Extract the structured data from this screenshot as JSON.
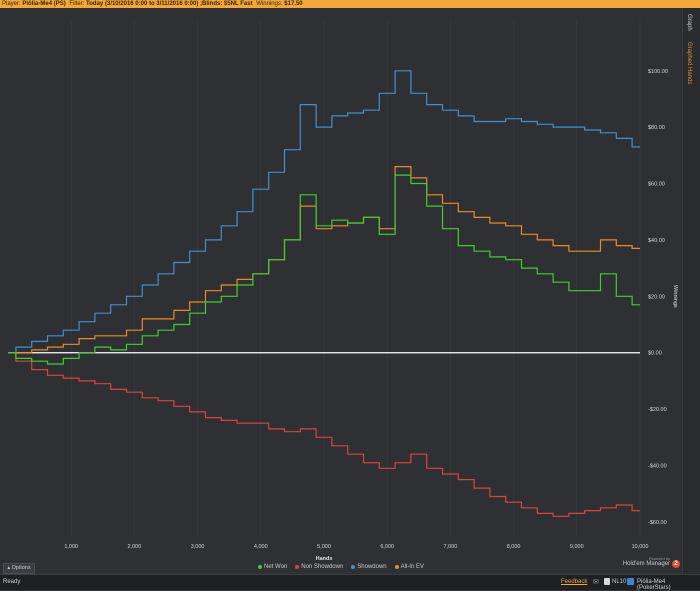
{
  "title_bar": {
    "player_label": "Player:",
    "player_name": "Piölia-Me4 (PS)",
    "filter_label": "Filter:",
    "filter_value": "Today (3/10/2016 0:00 to 3/11/2016 0:00) ;Blinds: $5NL Fast",
    "winnings_label": "Winnings:",
    "winnings_value": "$17.50"
  },
  "side_tabs": {
    "graph": "Graph",
    "graphed_hands": "Graphed Hands"
  },
  "options_label": "Options",
  "powered_by": {
    "small": "Powered by",
    "brand": "Hold'em Manager",
    "badge": "2"
  },
  "status_bar": {
    "ready": "Ready",
    "feedback": "Feedback",
    "stakes": "NL10",
    "player": "Piölia-Me4 (PokerStars)"
  },
  "colors": {
    "net_won": "#3ecf2e",
    "non_showdown": "#d9463a",
    "showdown": "#3f8fd2",
    "all_in_ev": "#ea8a26",
    "zero_line": "#ffffff",
    "grid": "#3a3d41",
    "accent": "#f2a73b"
  },
  "chart_data": {
    "type": "line",
    "xlabel": "Hands",
    "ylabel": "Winnings",
    "xlim": [
      0,
      10000
    ],
    "ylim": [
      -65,
      118
    ],
    "x_ticks": [
      1000,
      2000,
      3000,
      4000,
      5000,
      6000,
      7000,
      8000,
      9000,
      10000
    ],
    "x_tick_labels": [
      "1,000",
      "2,000",
      "3,000",
      "4,000",
      "5,000",
      "6,000",
      "7,000",
      "8,000",
      "9,000",
      "10,000"
    ],
    "y_ticks": [
      -60,
      -40,
      -20,
      0,
      20,
      40,
      60,
      80,
      100
    ],
    "y_tick_labels": [
      "-$60.00",
      "-$40.00",
      "-$20.00",
      "$0.00",
      "$20.00",
      "$40.00",
      "$60.00",
      "$80.00",
      "$100.00"
    ],
    "legend_position": "bottom-center",
    "grid": false,
    "x": [
      0,
      250,
      500,
      750,
      1000,
      1250,
      1500,
      1750,
      2000,
      2250,
      2500,
      2750,
      3000,
      3250,
      3500,
      3750,
      4000,
      4250,
      4500,
      4750,
      5000,
      5250,
      5500,
      5750,
      6000,
      6250,
      6500,
      6750,
      7000,
      7250,
      7500,
      7750,
      8000,
      8250,
      8500,
      8750,
      9000,
      9250,
      9500,
      9750,
      10000
    ],
    "series": [
      {
        "name": "Net Won",
        "values": [
          0,
          -2,
          -3,
          -4,
          -2,
          0,
          2,
          1,
          3,
          6,
          8,
          10,
          14,
          18,
          20,
          24,
          28,
          33,
          40,
          56,
          45,
          47,
          46,
          48,
          42,
          63,
          60,
          52,
          44,
          38,
          36,
          34,
          33,
          30,
          28,
          25,
          22,
          22,
          28,
          20,
          17
        ]
      },
      {
        "name": "Non Showdown",
        "values": [
          0,
          -3,
          -6,
          -8,
          -9,
          -10,
          -11,
          -13,
          -14,
          -16,
          -17,
          -19,
          -21,
          -23,
          -24,
          -25,
          -25,
          -27,
          -28,
          -27,
          -30,
          -33,
          -36,
          -39,
          -41,
          -39,
          -36,
          -41,
          -43,
          -45,
          -48,
          -51,
          -53,
          -55,
          -57,
          -58,
          -57,
          -56,
          -55,
          -54,
          -56
        ]
      },
      {
        "name": "Showdown",
        "values": [
          0,
          2,
          4,
          6,
          8,
          11,
          14,
          17,
          20,
          24,
          28,
          32,
          36,
          40,
          45,
          50,
          58,
          64,
          72,
          88,
          80,
          84,
          85,
          86,
          92,
          100,
          92,
          88,
          86,
          84,
          82,
          82,
          83,
          82,
          81,
          80,
          80,
          79,
          78,
          76,
          73
        ]
      },
      {
        "name": "All-In EV",
        "values": [
          0,
          0,
          1,
          2,
          3,
          5,
          6,
          6,
          8,
          12,
          12,
          15,
          18,
          22,
          24,
          26,
          28,
          33,
          40,
          52,
          44,
          45,
          46,
          48,
          44,
          66,
          62,
          56,
          53,
          50,
          48,
          46,
          45,
          42,
          40,
          38,
          36,
          36,
          40,
          38,
          37
        ]
      }
    ]
  }
}
